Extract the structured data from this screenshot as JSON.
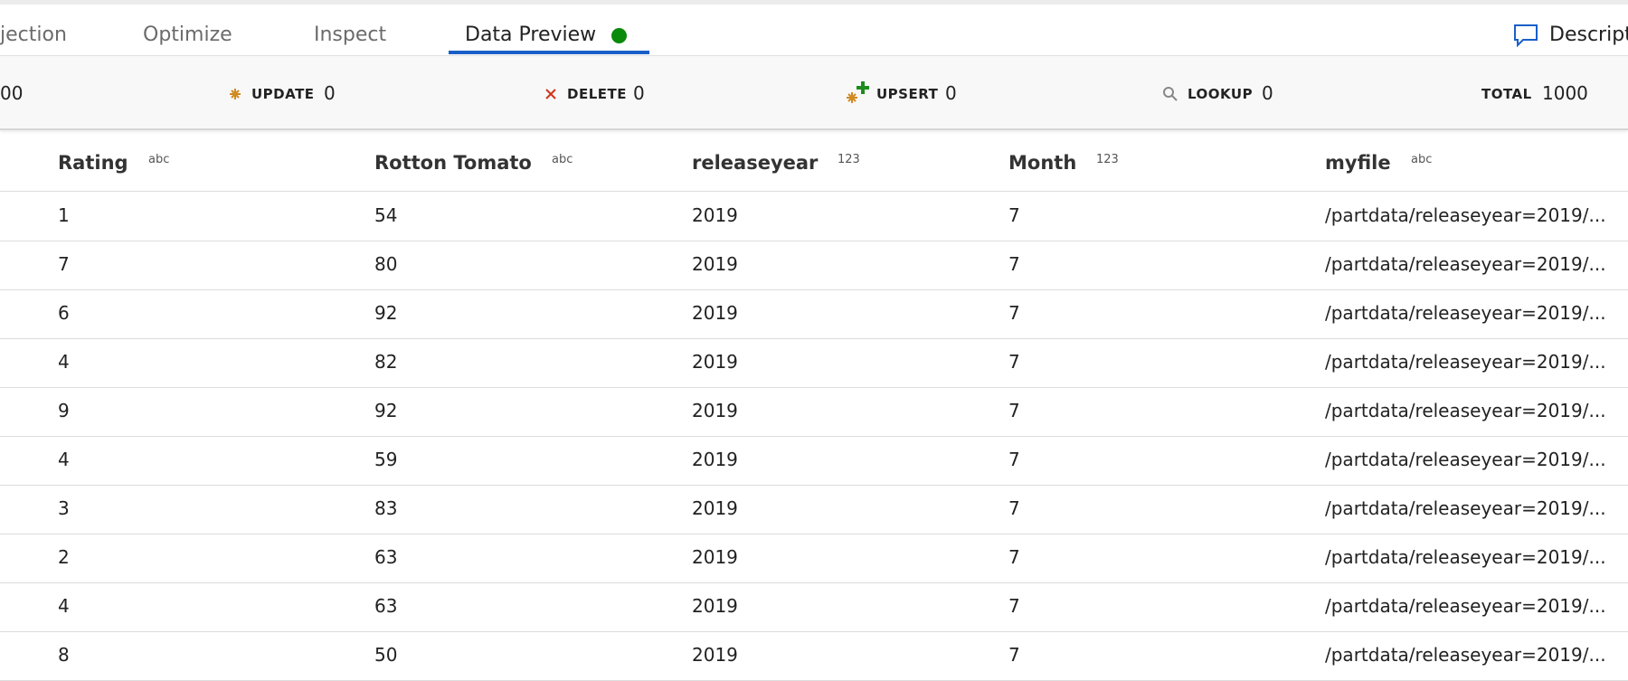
{
  "tabs": [
    "jection",
    "Optimize",
    "Inspect",
    "Data Preview"
  ],
  "description": "Descript",
  "stats": [
    {
      "label": null,
      "value": "00"
    },
    {
      "label": "UPDATE",
      "value": 0
    },
    {
      "label": "DELETE",
      "value": 0
    },
    {
      "label": "UPSERT",
      "value": 0
    },
    {
      "label": "LOOKUP",
      "value": 0
    },
    {
      "label": "TOTAL",
      "value": 1000
    }
  ],
  "table": {
    "columns": [
      {
        "name": "Rating",
        "type": "abc"
      },
      {
        "name": "Rotton Tomato",
        "type": "abc"
      },
      {
        "name": "releaseyear",
        "type": "123"
      },
      {
        "name": "Month",
        "type": "123"
      },
      {
        "name": "myfile",
        "type": "abc"
      }
    ],
    "rows": [
      [
        1,
        54,
        2019,
        7,
        "/partdata/releaseyear=2019/..."
      ],
      [
        7,
        80,
        2019,
        7,
        "/partdata/releaseyear=2019/..."
      ],
      [
        6,
        92,
        2019,
        7,
        "/partdata/releaseyear=2019/..."
      ],
      [
        4,
        82,
        2019,
        7,
        "/partdata/releaseyear=2019/..."
      ],
      [
        9,
        92,
        2019,
        7,
        "/partdata/releaseyear=2019/..."
      ],
      [
        4,
        59,
        2019,
        7,
        "/partdata/releaseyear=2019/..."
      ],
      [
        3,
        83,
        2019,
        7,
        "/partdata/releaseyear=2019/..."
      ],
      [
        2,
        63,
        2019,
        7,
        "/partdata/releaseyear=2019/..."
      ],
      [
        4,
        63,
        2019,
        7,
        "/partdata/releaseyear=2019/..."
      ],
      [
        8,
        50,
        2019,
        7,
        "/partdata/releaseyear=2019/..."
      ]
    ]
  }
}
